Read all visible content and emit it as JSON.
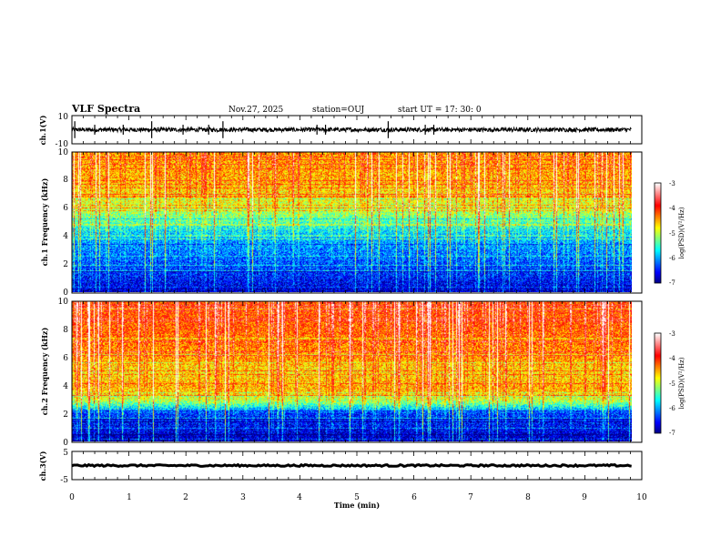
{
  "header": {
    "title": "VLF Spectra",
    "date": "Nov.27, 2025",
    "station": "station=OUJ",
    "start": "start  UT  =   17: 30: 0"
  },
  "colors": {
    "waveform": "#000000",
    "colormap": [
      "#00007f",
      "#0000ff",
      "#007fff",
      "#00ffff",
      "#7fff7f",
      "#ffff00",
      "#ff7f00",
      "#ff0000",
      "#ff8080",
      "#ffffff"
    ]
  },
  "chart_data": [
    {
      "type": "line",
      "id": "ch1_waveform",
      "ylabel": "ch.1(V)",
      "ylim": [
        -10,
        10
      ],
      "yticks": [
        "10",
        "-10"
      ],
      "baseline": 0,
      "xlim": [
        0,
        10
      ],
      "description_values": {
        "mean": 0,
        "noise_amplitude": 1.5,
        "spikes_at_min": [
          0.05,
          0.4,
          0.9,
          1.4,
          1.95,
          2.4,
          2.65,
          4.3,
          4.45,
          5.55,
          6.2,
          6.35
        ]
      }
    },
    {
      "type": "heatmap",
      "id": "ch1_spectrogram",
      "ylabel": "ch.1  Frequency  (kHz)",
      "ylim": [
        0,
        10
      ],
      "yticks": [
        "0",
        "2",
        "4",
        "6",
        "8",
        "10"
      ],
      "xlim": [
        0,
        9.82
      ],
      "colorbar": {
        "label": "log(PSD)(V²/Hz)",
        "range": [
          -7,
          -3
        ],
        "ticks": [
          "-3",
          "-4",
          "-5",
          "-6",
          "-7"
        ]
      },
      "profile_khz": [
        [
          0,
          -6.8
        ],
        [
          1,
          -6.5
        ],
        [
          2,
          -6.3
        ],
        [
          3,
          -6.1
        ],
        [
          4,
          -5.9
        ],
        [
          5,
          -5.4
        ],
        [
          6,
          -5.0
        ],
        [
          7,
          -4.7
        ],
        [
          8,
          -4.5
        ],
        [
          10,
          -4.4
        ]
      ]
    },
    {
      "type": "heatmap",
      "id": "ch2_spectrogram",
      "ylabel": "ch.2  Frequency  (kHz)",
      "ylim": [
        0,
        10
      ],
      "yticks": [
        "0",
        "2",
        "4",
        "6",
        "8",
        "10"
      ],
      "xlim": [
        0,
        9.82
      ],
      "colorbar": {
        "label": "log(PSD)(V²/Hz)",
        "range": [
          -7,
          -3
        ],
        "ticks": [
          "-3",
          "-4",
          "-5",
          "-6",
          "-7"
        ]
      },
      "profile_khz": [
        [
          0,
          -6.9
        ],
        [
          1,
          -6.6
        ],
        [
          2,
          -6.4
        ],
        [
          2.8,
          -5.2
        ],
        [
          3.5,
          -4.6
        ],
        [
          4,
          -4.5
        ],
        [
          5,
          -4.7
        ],
        [
          6,
          -4.4
        ],
        [
          8,
          -4.2
        ],
        [
          10,
          -4.1
        ]
      ]
    },
    {
      "type": "line",
      "id": "ch3_waveform",
      "ylabel": "ch.3(V)",
      "ylim": [
        -5,
        5
      ],
      "yticks": [
        "5",
        "-5"
      ],
      "baseline": 0,
      "xlim": [
        0,
        10
      ],
      "description_values": {
        "mean": 0,
        "noise_amplitude": 0.3
      }
    }
  ],
  "xaxis": {
    "label": "Time  (min)",
    "range": [
      0,
      10
    ],
    "ticks": [
      "0",
      "1",
      "2",
      "3",
      "4",
      "5",
      "6",
      "7",
      "8",
      "9",
      "10"
    ]
  }
}
